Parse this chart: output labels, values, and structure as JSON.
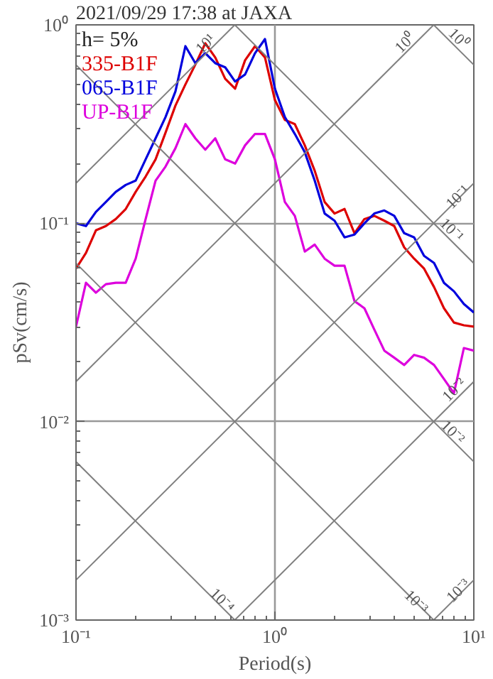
{
  "chart_data": {
    "type": "line",
    "title": "2021/09/29 17:38 at JAXA",
    "xlabel": "Period(s)",
    "ylabel": "pSv(cm/s)",
    "log": "xy",
    "grid": true,
    "legend": "top left",
    "marker": "none",
    "line_style": "solid",
    "xlim": [
      0.1,
      10
    ],
    "ylim": [
      0.001,
      1
    ],
    "xticks": [
      {
        "value": 0.1,
        "label": "10⁻¹"
      },
      {
        "value": 1,
        "label": "10⁰"
      },
      {
        "value": 10,
        "label": "10¹"
      }
    ],
    "yticks": [
      {
        "value": 0.001,
        "label": "10⁻³"
      },
      {
        "value": 0.01,
        "label": "10⁻²"
      },
      {
        "value": 0.1,
        "label": "10⁻¹"
      },
      {
        "value": 1,
        "label": "10⁰"
      }
    ],
    "x": [
      0.1,
      0.1122,
      0.1259,
      0.1413,
      0.1585,
      0.1778,
      0.1995,
      0.2239,
      0.2512,
      0.2818,
      0.3162,
      0.3548,
      0.3981,
      0.4467,
      0.5012,
      0.5623,
      0.631,
      0.7079,
      0.7943,
      0.8913,
      1,
      1.122,
      1.259,
      1.413,
      1.585,
      1.778,
      1.995,
      2.239,
      2.512,
      2.818,
      3.162,
      3.548,
      3.981,
      4.467,
      5.012,
      5.623,
      6.31,
      7.079,
      7.943,
      8.913,
      10
    ],
    "annotations": [
      "h= 5%",
      {
        "text": "10¹",
        "x": 0.45,
        "y": 0.8
      },
      {
        "text": "10⁰",
        "x": 4.54,
        "y": 0.81
      },
      {
        "text": "10⁰",
        "x": 8.34,
        "y": 0.85
      },
      {
        "text": "10⁻¹",
        "x": 8.34,
        "y": 0.135
      },
      {
        "text": "10⁻¹",
        "x": 7.7,
        "y": 0.092
      },
      {
        "text": "10⁻²",
        "x": 8.0,
        "y": 0.0144
      },
      {
        "text": "10⁻²",
        "x": 7.8,
        "y": 0.0088
      },
      {
        "text": "10⁻³",
        "x": 8.4,
        "y": 0.0014
      },
      {
        "text": "10⁻³",
        "x": 5.1,
        "y": 0.00123
      },
      {
        "text": "10⁻⁴",
        "x": 0.54,
        "y": 0.00125
      }
    ],
    "series": [
      {
        "name": "335-B1F",
        "color": "#dd0000",
        "values": [
          0.0591,
          0.0708,
          0.0921,
          0.0968,
          0.105,
          0.118,
          0.144,
          0.172,
          0.21,
          0.286,
          0.392,
          0.501,
          0.631,
          0.807,
          0.685,
          0.535,
          0.477,
          0.663,
          0.781,
          0.685,
          0.418,
          0.332,
          0.316,
          0.247,
          0.184,
          0.128,
          0.112,
          0.118,
          0.0891,
          0.105,
          0.109,
          0.103,
          0.0968,
          0.0756,
          0.0663,
          0.0591,
          0.0477,
          0.0373,
          0.0316,
          0.0306,
          0.0301
        ]
      },
      {
        "name": "065-B1F",
        "color": "#0000dd",
        "values": [
          0.1,
          0.0968,
          0.114,
          0.128,
          0.144,
          0.156,
          0.164,
          0.21,
          0.268,
          0.343,
          0.462,
          0.781,
          0.641,
          0.72,
          0.641,
          0.611,
          0.518,
          0.562,
          0.72,
          0.848,
          0.477,
          0.343,
          0.282,
          0.228,
          0.164,
          0.112,
          0.103,
          0.0849,
          0.0877,
          0.1,
          0.112,
          0.116,
          0.109,
          0.0891,
          0.0849,
          0.0685,
          0.0631,
          0.0501,
          0.0454,
          0.0392,
          0.0355
        ]
      },
      {
        "name": "UP-B1F",
        "color": "#dd00dd",
        "values": [
          0.0301,
          0.0501,
          0.0447,
          0.0493,
          0.0501,
          0.0501,
          0.0663,
          0.105,
          0.164,
          0.193,
          0.239,
          0.316,
          0.268,
          0.235,
          0.268,
          0.21,
          0.2,
          0.247,
          0.282,
          0.282,
          0.21,
          0.128,
          0.109,
          0.072,
          0.0781,
          0.0663,
          0.0611,
          0.0611,
          0.0405,
          0.0373,
          0.0291,
          0.0228,
          0.021,
          0.0193,
          0.0217,
          0.021,
          0.0193,
          0.0164,
          0.0139,
          0.0235,
          0.0228
        ]
      },
      {
        "type": "line",
        "color": "#808080",
        "x": [
          6.283,
          10
        ],
        "values": [
          1,
          0.6283
        ]
      },
      {
        "type": "line",
        "color": "#808080",
        "x": [
          0.6283,
          10
        ],
        "values": [
          1,
          0.06283
        ]
      },
      {
        "type": "line",
        "color": "#808080",
        "x": [
          0.1,
          10
        ],
        "values": [
          0.6283,
          0.006283
        ]
      },
      {
        "type": "line",
        "color": "#808080",
        "x": [
          0.1,
          6.283
        ],
        "values": [
          0.06283,
          0.001
        ]
      },
      {
        "type": "line",
        "color": "#808080",
        "x": [
          0.1,
          0.6283
        ],
        "values": [
          0.006283,
          0.001
        ]
      },
      {
        "type": "line",
        "color": "#808080",
        "x": [
          0.1,
          0.6283
        ],
        "values": [
          0.1592,
          1
        ]
      },
      {
        "type": "line",
        "color": "#808080",
        "x": [
          0.1,
          6.283
        ],
        "values": [
          0.01592,
          1
        ]
      },
      {
        "type": "line",
        "color": "#808080",
        "x": [
          0.1,
          10
        ],
        "values": [
          0.001592,
          0.1592
        ]
      },
      {
        "type": "line",
        "color": "#808080",
        "x": [
          0.6283,
          10
        ],
        "values": [
          0.001,
          0.01592
        ]
      },
      {
        "type": "line",
        "color": "#808080",
        "x": [
          6.283,
          10
        ],
        "values": [
          0.001,
          0.001592
        ]
      }
    ]
  }
}
